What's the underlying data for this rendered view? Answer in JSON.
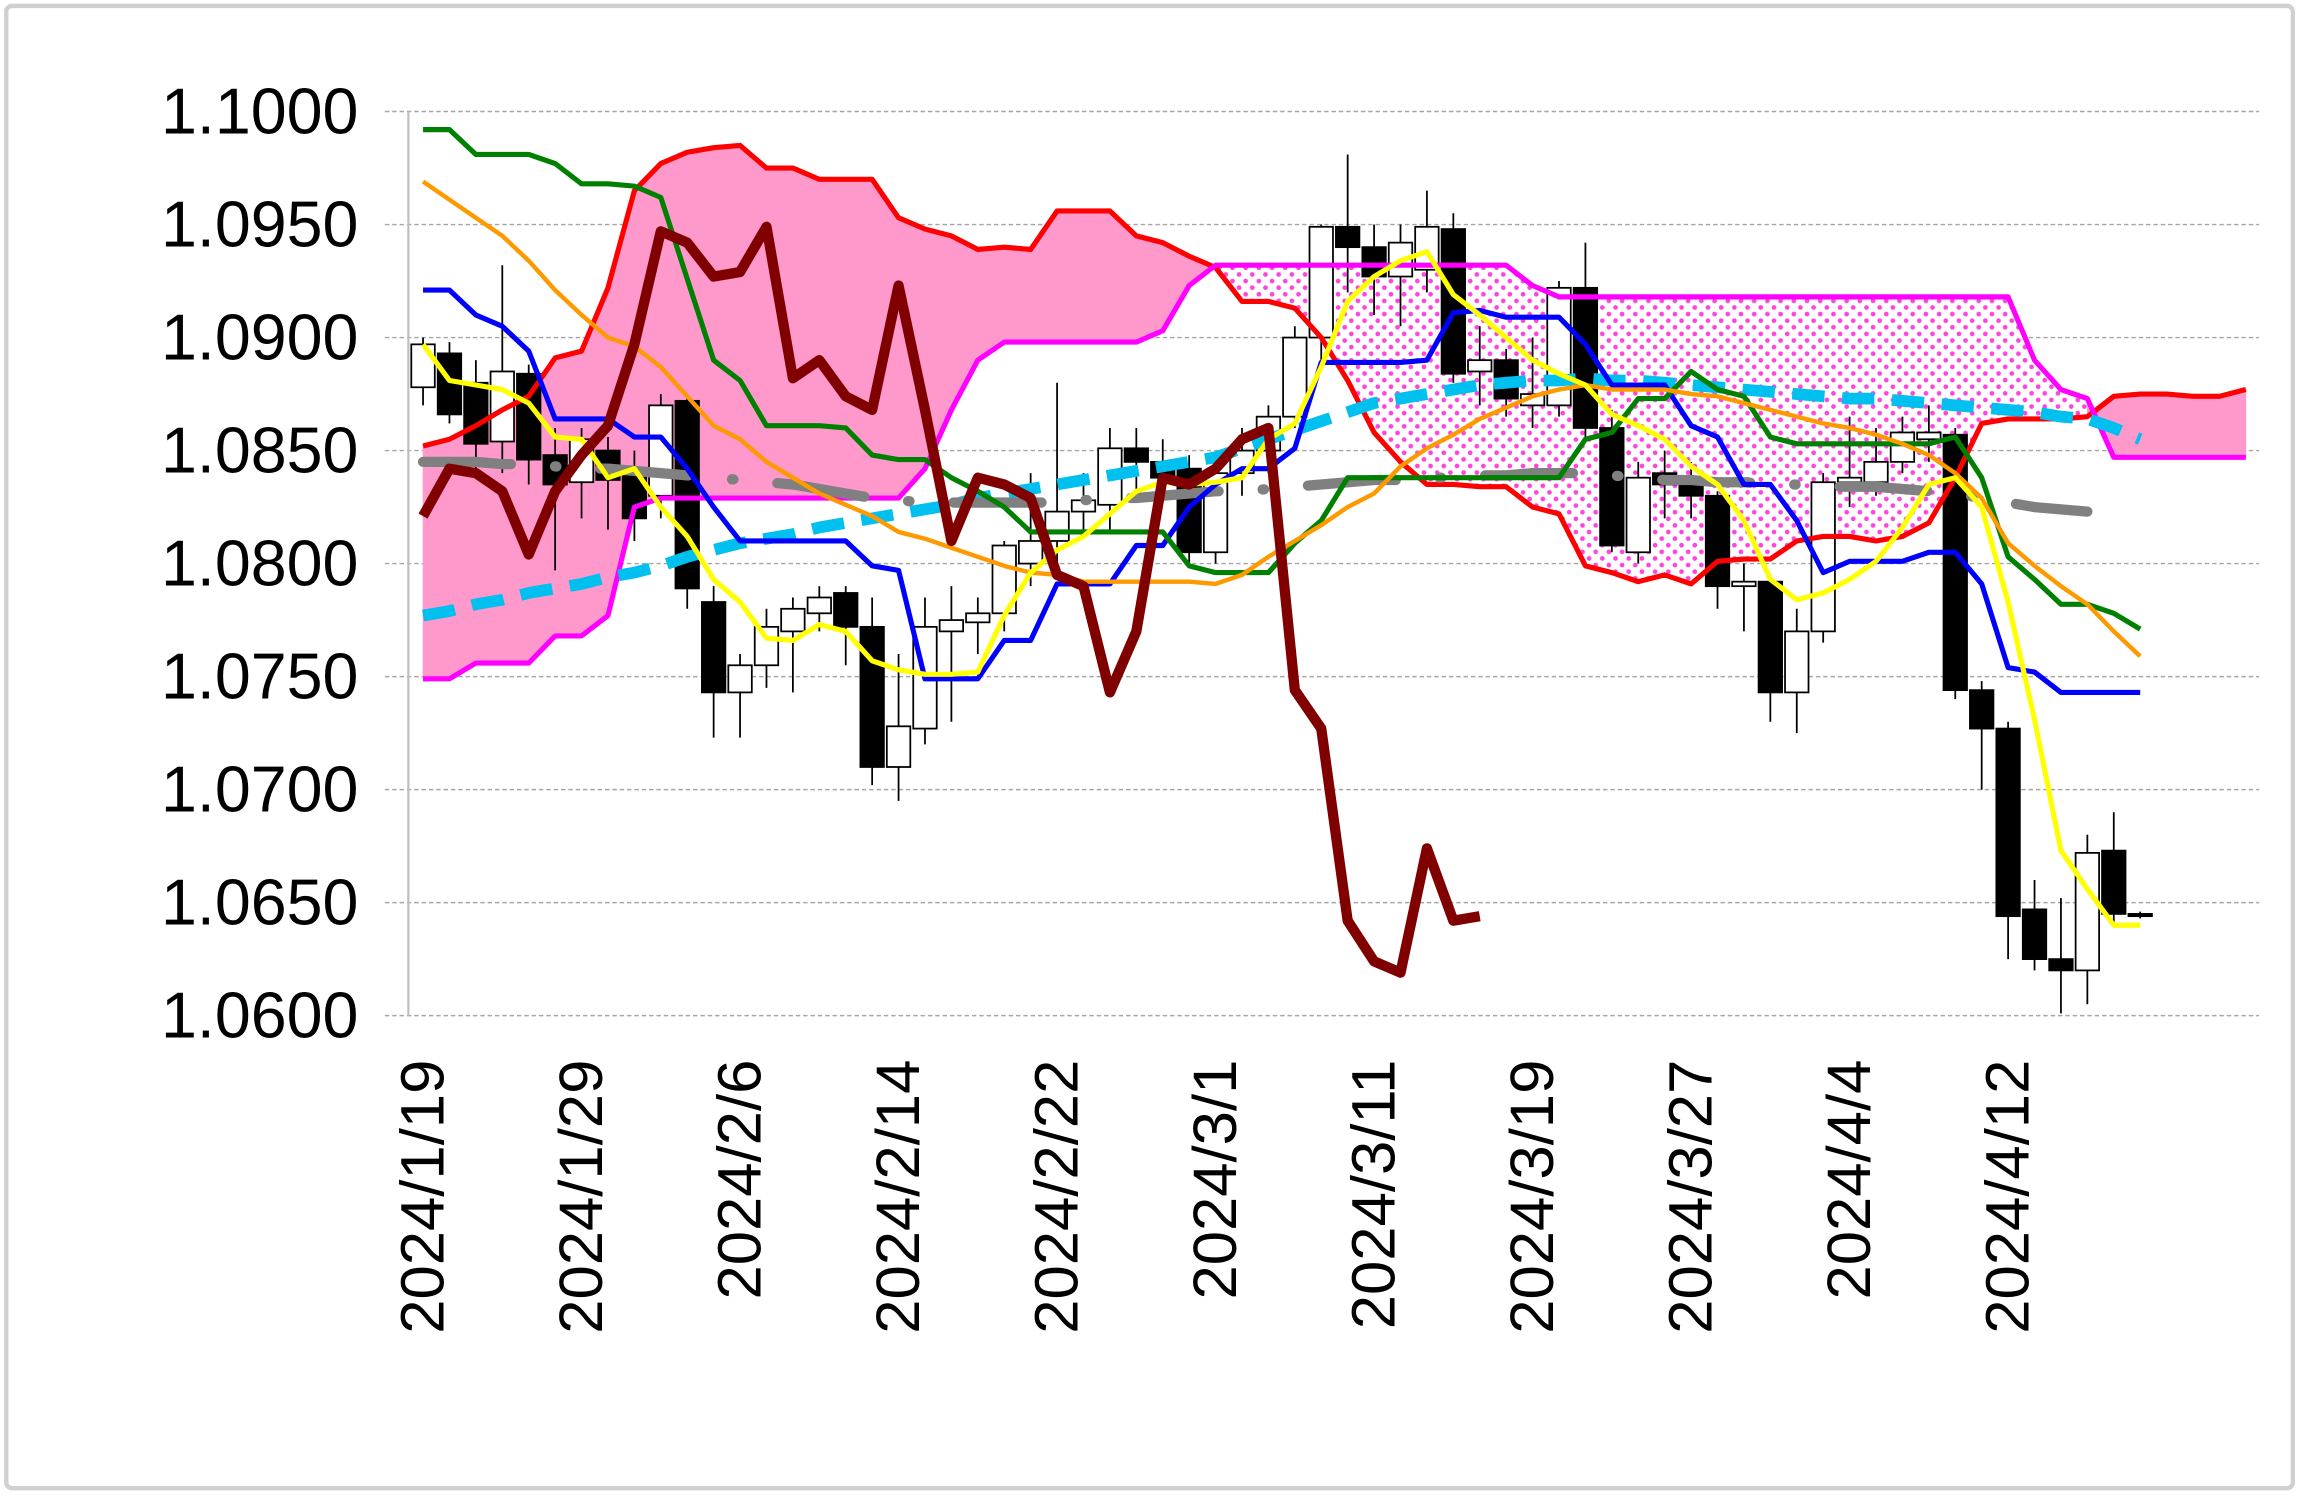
{
  "chart_data": {
    "type": "candlestick",
    "categories": [
      "2024/1/19",
      null,
      null,
      null,
      null,
      null,
      "2024/1/29",
      null,
      null,
      null,
      null,
      null,
      "2024/2/6",
      null,
      null,
      null,
      null,
      null,
      "2024/2/14",
      null,
      null,
      null,
      null,
      null,
      "2024/2/22",
      null,
      null,
      null,
      null,
      null,
      "2024/3/1",
      null,
      null,
      null,
      null,
      null,
      "2024/3/11",
      null,
      null,
      null,
      null,
      null,
      "2024/3/19",
      null,
      null,
      null,
      null,
      null,
      "2024/3/27",
      null,
      null,
      null,
      null,
      null,
      "2024/4/4",
      null,
      null,
      null,
      null,
      null,
      "2024/4/12",
      null,
      null,
      null,
      null,
      null,
      null,
      null,
      null,
      null
    ],
    "candles": {
      "up_color": "#ffffff",
      "down_color": "#000000",
      "open": [
        1.0878,
        1.0893,
        1.088,
        1.0854,
        1.0884,
        1.0848,
        1.0836,
        1.085,
        1.084,
        1.083,
        1.0872,
        1.0783,
        1.0743,
        1.0755,
        1.077,
        1.0778,
        1.0787,
        1.0772,
        1.071,
        1.0727,
        1.077,
        1.0774,
        1.0778,
        1.08,
        1.081,
        1.0823,
        1.0826,
        1.0851,
        1.0845,
        1.0842,
        1.0805,
        1.084,
        1.085,
        1.0865,
        1.09,
        1.0949,
        1.094,
        1.0927,
        1.093,
        1.0948,
        1.0885,
        1.089,
        1.087,
        1.087,
        1.0922,
        1.086,
        1.0805,
        1.084,
        1.0838,
        1.083,
        1.079,
        1.0792,
        1.0743,
        1.077,
        1.0836,
        1.0836,
        1.0845,
        1.0855,
        1.0857,
        1.0744,
        1.0727,
        1.0647,
        1.0625,
        1.062,
        1.0673,
        1.0645,
        null,
        null,
        null,
        null
      ],
      "high": [
        1.09,
        1.0898,
        1.089,
        1.0932,
        1.0888,
        1.086,
        1.086,
        1.0856,
        1.085,
        1.0875,
        1.0875,
        1.079,
        1.076,
        1.078,
        1.0785,
        1.079,
        1.079,
        1.0785,
        1.076,
        1.0785,
        1.079,
        1.0785,
        1.081,
        1.084,
        1.088,
        1.084,
        1.086,
        1.086,
        1.0855,
        1.0848,
        1.0845,
        1.086,
        1.087,
        1.0905,
        1.095,
        1.0981,
        1.095,
        1.095,
        1.0965,
        1.0955,
        1.0905,
        1.0895,
        1.09,
        1.0925,
        1.0942,
        1.0868,
        1.0845,
        1.085,
        1.0845,
        1.0832,
        1.08,
        1.0795,
        1.078,
        1.084,
        1.0865,
        1.086,
        1.0865,
        1.087,
        1.086,
        1.0748,
        1.073,
        1.066,
        1.0652,
        1.068,
        1.069,
        1.0646,
        null,
        null,
        null,
        null
      ],
      "low": [
        1.087,
        1.0862,
        1.084,
        1.084,
        1.0835,
        1.0797,
        1.082,
        1.0815,
        1.081,
        1.082,
        1.078,
        1.0723,
        1.0723,
        1.0745,
        1.0743,
        1.077,
        1.0755,
        1.0702,
        1.0695,
        1.072,
        1.073,
        1.076,
        1.077,
        1.079,
        1.08,
        1.0815,
        1.0815,
        1.083,
        1.083,
        1.08,
        1.08,
        1.083,
        1.084,
        1.086,
        1.089,
        1.092,
        1.091,
        1.0905,
        1.092,
        1.088,
        1.087,
        1.0865,
        1.086,
        1.0865,
        1.0855,
        1.0805,
        1.08,
        1.082,
        1.082,
        1.078,
        1.077,
        1.073,
        1.0725,
        1.0765,
        1.0825,
        1.083,
        1.084,
        1.0845,
        1.074,
        1.07,
        1.0625,
        1.062,
        1.0601,
        1.0605,
        1.064,
        1.0643,
        null,
        null,
        null,
        null
      ],
      "close": [
        1.0897,
        1.0866,
        1.0853,
        1.0885,
        1.0846,
        1.0835,
        1.0855,
        1.0837,
        1.082,
        1.087,
        1.0789,
        1.0743,
        1.0755,
        1.0772,
        1.078,
        1.0785,
        1.0772,
        1.071,
        1.0728,
        1.0772,
        1.0775,
        1.0778,
        1.0808,
        1.081,
        1.0823,
        1.0828,
        1.0851,
        1.0845,
        1.0838,
        1.0805,
        1.084,
        1.085,
        1.0865,
        1.09,
        1.0949,
        1.094,
        1.0927,
        1.0942,
        1.0949,
        1.0884,
        1.089,
        1.0873,
        1.0875,
        1.0922,
        1.086,
        1.0808,
        1.0838,
        1.0835,
        1.083,
        1.079,
        1.0792,
        1.0743,
        1.077,
        1.0836,
        1.0838,
        1.0845,
        1.0858,
        1.0858,
        1.0744,
        1.0727,
        1.0644,
        1.0625,
        1.062,
        1.0672,
        1.0645,
        1.0644,
        null,
        null,
        null,
        null
      ]
    },
    "cloud": {
      "fill": "#ff99cc",
      "pattern_color": "#ff44dd",
      "span_a": {
        "color": "#ff0000",
        "values": [
          1.0852,
          1.0855,
          1.0861,
          1.0868,
          1.0874,
          1.0891,
          1.0894,
          1.0922,
          1.0965,
          1.0977,
          1.0982,
          1.0984,
          1.0985,
          1.0975,
          1.0975,
          1.097,
          1.097,
          1.097,
          1.0953,
          1.0948,
          1.0945,
          1.0939,
          1.094,
          1.0939,
          1.0956,
          1.0956,
          1.0956,
          1.0945,
          1.0942,
          1.0936,
          1.0931,
          1.0916,
          1.0916,
          1.0913,
          1.09,
          1.0881,
          1.0858,
          1.0845,
          1.0835,
          1.0835,
          1.0834,
          1.0834,
          1.0825,
          1.0822,
          1.0799,
          1.0796,
          1.0792,
          1.0795,
          1.0791,
          1.0801,
          1.0802,
          1.0802,
          1.081,
          1.0812,
          1.0812,
          1.081,
          1.0812,
          1.0818,
          1.0838,
          1.0862,
          1.0864,
          1.0864,
          1.0864,
          1.0865,
          1.0874,
          1.0875,
          1.0875,
          1.0874,
          1.0874,
          1.0877
        ]
      },
      "span_b": {
        "color": "#ff00ff",
        "values": [
          1.0749,
          1.0749,
          1.0756,
          1.0756,
          1.0756,
          1.0768,
          1.0768,
          1.0777,
          1.0825,
          1.0829,
          1.0829,
          1.0829,
          1.0829,
          1.0829,
          1.0829,
          1.0829,
          1.0829,
          1.0829,
          1.0829,
          1.0842,
          1.0868,
          1.089,
          1.0898,
          1.0898,
          1.0898,
          1.0898,
          1.0898,
          1.0898,
          1.0903,
          1.0923,
          1.0932,
          1.0932,
          1.0932,
          1.0932,
          1.0932,
          1.0932,
          1.0932,
          1.0932,
          1.0932,
          1.0932,
          1.0932,
          1.0932,
          1.0923,
          1.0918,
          1.0918,
          1.0918,
          1.0918,
          1.0918,
          1.0918,
          1.0918,
          1.0918,
          1.0918,
          1.0918,
          1.0918,
          1.0918,
          1.0918,
          1.0918,
          1.0918,
          1.0918,
          1.0918,
          1.0918,
          1.089,
          1.0877,
          1.0873,
          1.0847,
          1.0847,
          1.0847,
          1.0847,
          1.0847,
          1.0847
        ]
      }
    },
    "series": [
      {
        "color": "#00c0f0",
        "width": 8,
        "dash": "dash",
        "values": [
          1.0777,
          1.0779,
          1.0782,
          1.0784,
          1.0787,
          1.0789,
          1.0791,
          1.0794,
          1.0796,
          1.0799,
          1.0803,
          1.0806,
          1.0809,
          1.0811,
          1.0813,
          1.0816,
          1.0818,
          1.082,
          1.0822,
          1.0824,
          1.0826,
          1.0829,
          1.0831,
          1.0833,
          1.0835,
          1.0837,
          1.0839,
          1.0841,
          1.0843,
          1.0845,
          1.0847,
          1.0851,
          1.0855,
          1.0859,
          1.0863,
          1.0867,
          1.0871,
          1.0873,
          1.0875,
          1.0877,
          1.0879,
          1.088,
          1.0881,
          1.0881,
          1.0882,
          1.0881,
          1.0881,
          1.088,
          1.0879,
          1.0878,
          1.0877,
          1.0876,
          1.0875,
          1.0874,
          1.0873,
          1.0873,
          1.0872,
          1.0871,
          1.087,
          1.0869,
          1.0868,
          1.0867,
          1.0865,
          1.0864,
          1.086,
          1.0855,
          null,
          null,
          null,
          null
        ]
      },
      {
        "color": "#808080",
        "width": 7,
        "dash": "dashdot",
        "values": [
          1.0845,
          1.0845,
          1.0845,
          1.0844,
          1.0844,
          1.0843,
          1.0842,
          1.0842,
          1.0841,
          1.084,
          1.0839,
          1.0838,
          1.0837,
          1.0836,
          1.0835,
          1.0833,
          1.0831,
          1.0829,
          1.0828,
          1.0827,
          1.0827,
          1.0827,
          1.0827,
          1.0827,
          1.0827,
          1.0828,
          1.0829,
          1.0829,
          1.083,
          1.0831,
          1.0832,
          1.0832,
          1.0833,
          1.0834,
          1.0835,
          1.0836,
          1.0837,
          1.0837,
          1.0838,
          1.0838,
          1.0839,
          1.0839,
          1.084,
          1.084,
          1.084,
          1.0839,
          1.0838,
          1.0837,
          1.0837,
          1.0836,
          1.0836,
          1.0835,
          1.0835,
          1.0834,
          1.0834,
          1.0834,
          1.0833,
          1.0832,
          1.0831,
          1.0829,
          1.0827,
          1.0825,
          1.0824,
          1.0823,
          null,
          null,
          null,
          null,
          null,
          null
        ]
      },
      {
        "color": "#0000ff",
        "width": 3.5,
        "values": [
          1.0921,
          1.0921,
          1.091,
          1.0905,
          1.0894,
          1.0864,
          1.0864,
          1.0864,
          1.0856,
          1.0856,
          1.0842,
          1.0825,
          1.081,
          1.081,
          1.081,
          1.081,
          1.081,
          1.0799,
          1.0797,
          1.0749,
          1.0749,
          1.0749,
          1.0766,
          1.0766,
          1.0791,
          1.0791,
          1.0791,
          1.0808,
          1.0808,
          1.0825,
          1.0835,
          1.0842,
          1.0842,
          1.0851,
          1.0889,
          1.0889,
          1.0889,
          1.0889,
          1.089,
          1.0911,
          1.0912,
          1.0909,
          1.0909,
          1.0909,
          1.0897,
          1.0879,
          1.0879,
          1.0879,
          1.0861,
          1.0856,
          1.0835,
          1.0835,
          1.0819,
          1.0796,
          1.0801,
          1.0801,
          1.0801,
          1.0805,
          1.0805,
          1.0791,
          1.0754,
          1.0752,
          1.0743,
          1.0743,
          1.0743,
          1.0743,
          null,
          null,
          null,
          null
        ]
      },
      {
        "color": "#008000",
        "width": 3.5,
        "values": [
          1.0992,
          1.0992,
          1.0981,
          1.0981,
          1.0981,
          1.0977,
          1.0968,
          1.0968,
          1.0967,
          1.0962,
          1.0926,
          1.089,
          1.0881,
          1.0861,
          1.0861,
          1.0861,
          1.086,
          1.0848,
          1.0846,
          1.0846,
          1.0838,
          1.0832,
          1.0825,
          1.0814,
          1.0814,
          1.0814,
          1.0814,
          1.0814,
          1.0814,
          1.0799,
          1.0796,
          1.0796,
          1.0796,
          1.0809,
          1.0819,
          1.0838,
          1.0838,
          1.0838,
          1.0838,
          1.0838,
          1.0838,
          1.0838,
          1.0838,
          1.0838,
          1.0855,
          1.0858,
          1.0873,
          1.0873,
          1.0885,
          1.0877,
          1.0874,
          1.0856,
          1.0853,
          1.0853,
          1.0853,
          1.0853,
          1.0853,
          1.0853,
          1.0856,
          1.0838,
          1.0803,
          1.0793,
          1.0782,
          1.0782,
          1.0778,
          1.0771,
          null,
          null,
          null,
          null
        ]
      },
      {
        "color": "#ff9900",
        "width": 3,
        "values": [
          1.0969,
          1.0961,
          1.0953,
          1.0945,
          1.0934,
          1.0921,
          1.091,
          1.09,
          1.0896,
          1.0887,
          1.0874,
          1.0861,
          1.0855,
          1.0845,
          1.0838,
          1.0831,
          1.0826,
          1.0821,
          1.0814,
          1.0811,
          1.0807,
          1.0803,
          1.0799,
          1.0796,
          1.0795,
          1.0792,
          1.0792,
          1.0792,
          1.0792,
          1.0792,
          1.0791,
          1.0795,
          1.0803,
          1.081,
          1.0817,
          1.0825,
          1.0831,
          1.0843,
          1.0851,
          1.0857,
          1.0864,
          1.0869,
          1.0874,
          1.0877,
          1.0879,
          1.0877,
          1.0877,
          1.0877,
          1.0875,
          1.0874,
          1.0871,
          1.0868,
          1.0865,
          1.0862,
          1.086,
          1.0857,
          1.0853,
          1.0848,
          1.084,
          1.0829,
          1.0809,
          1.0799,
          1.079,
          1.0782,
          1.077,
          1.0759,
          null,
          null,
          null,
          null
        ]
      },
      {
        "color": "#ffff00",
        "width": 3.5,
        "values": [
          1.0897,
          1.0881,
          1.0879,
          1.0877,
          1.0871,
          1.0856,
          1.0855,
          1.0838,
          1.0842,
          1.0825,
          1.0812,
          1.0793,
          1.0783,
          1.0767,
          1.0766,
          1.0773,
          1.077,
          1.0757,
          1.0753,
          1.0751,
          1.0751,
          1.0752,
          1.0777,
          1.0796,
          1.0806,
          1.0812,
          1.0822,
          1.0832,
          1.0836,
          1.0835,
          1.0836,
          1.0838,
          1.0855,
          1.0862,
          1.0887,
          1.0916,
          1.0927,
          1.0934,
          1.0938,
          1.0919,
          1.091,
          1.09,
          1.089,
          1.0884,
          1.0879,
          1.0866,
          1.0861,
          1.0855,
          1.0843,
          1.0835,
          1.0819,
          1.0793,
          1.0784,
          1.0787,
          1.0793,
          1.0801,
          1.0816,
          1.0835,
          1.0838,
          1.0825,
          1.0783,
          1.0731,
          1.0673,
          1.0656,
          1.064,
          1.064,
          null,
          null,
          null,
          null
        ]
      },
      {
        "color": "#800000",
        "width": 7,
        "values": [
          1.0821,
          1.0842,
          1.084,
          1.0832,
          1.0804,
          1.0832,
          1.0848,
          1.0861,
          1.0897,
          1.0947,
          1.0942,
          1.0927,
          1.0929,
          1.0949,
          1.0882,
          1.089,
          1.0874,
          1.0868,
          1.0923,
          1.0868,
          1.081,
          1.0838,
          1.0835,
          1.0829,
          1.0795,
          1.079,
          1.0743,
          1.077,
          1.0838,
          1.0835,
          1.0842,
          1.0855,
          1.086,
          1.0744,
          1.0727,
          1.0642,
          1.0624,
          1.0619,
          1.0674,
          1.0642,
          1.0644,
          null,
          null,
          null,
          null,
          null,
          null,
          null,
          null,
          null,
          null,
          null,
          null,
          null,
          null,
          null,
          null,
          null,
          null,
          null,
          null,
          null,
          null,
          null,
          null,
          null,
          null,
          null,
          null,
          null
        ]
      }
    ],
    "ylim": [
      1.06,
      1.1
    ],
    "yticks": [
      {
        "value": 1.06,
        "label": "1.0600"
      },
      {
        "value": 1.065,
        "label": "1.0650"
      },
      {
        "value": 1.07,
        "label": "1.0700"
      },
      {
        "value": 1.075,
        "label": "1.0750"
      },
      {
        "value": 1.08,
        "label": "1.0800"
      },
      {
        "value": 1.085,
        "label": "1.0850"
      },
      {
        "value": 1.09,
        "label": "1.0900"
      },
      {
        "value": 1.095,
        "label": "1.0950"
      },
      {
        "value": 1.1,
        "label": "1.1000"
      }
    ],
    "grid": true
  }
}
